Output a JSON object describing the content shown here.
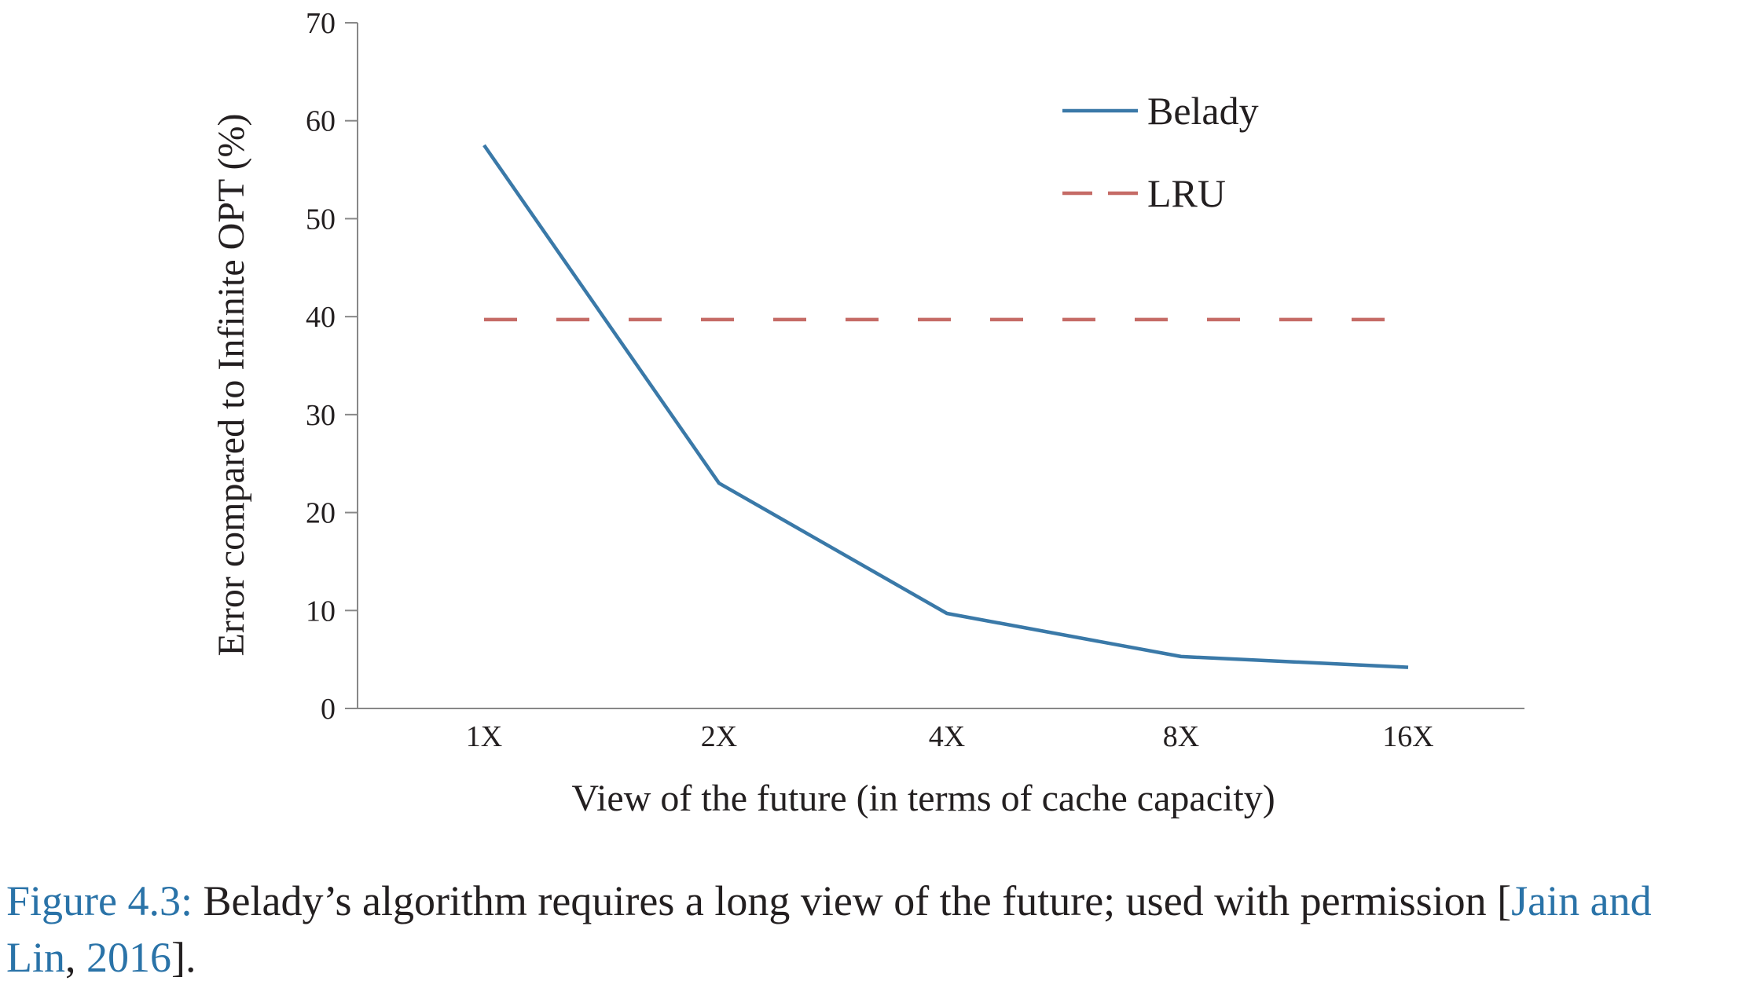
{
  "chart_data": {
    "type": "line",
    "title": "",
    "xlabel": "View of the future (in terms of cache capacity)",
    "ylabel": "Error compared to Infinite OPT (%)",
    "categories": [
      "1X",
      "2X",
      "4X",
      "8X",
      "16X"
    ],
    "ylim": [
      0,
      70
    ],
    "yticks": [
      "0",
      "10",
      "20",
      "30",
      "40",
      "50",
      "60",
      "70"
    ],
    "grid": false,
    "legend_position": "top-right",
    "series": [
      {
        "name": "Belady",
        "values": [
          57.5,
          23,
          9.7,
          5.3,
          4.2
        ],
        "color": "#3a79a8",
        "style": "solid"
      },
      {
        "name": "LRU",
        "values": [
          39.7,
          39.7,
          39.7,
          39.7,
          39.7
        ],
        "color": "#c56b66",
        "style": "dashed"
      }
    ]
  },
  "caption": {
    "label": "Figure 4.3:",
    "text": " Belady’s algorithm requires a long view of the future; used with permission [",
    "cite_line1": "Jain and",
    "cite_line2": "Lin",
    "mid": ", ",
    "year": "2016",
    "end": "]."
  },
  "colors": {
    "caption_link": "#2a73a8",
    "axis": "#888888"
  }
}
